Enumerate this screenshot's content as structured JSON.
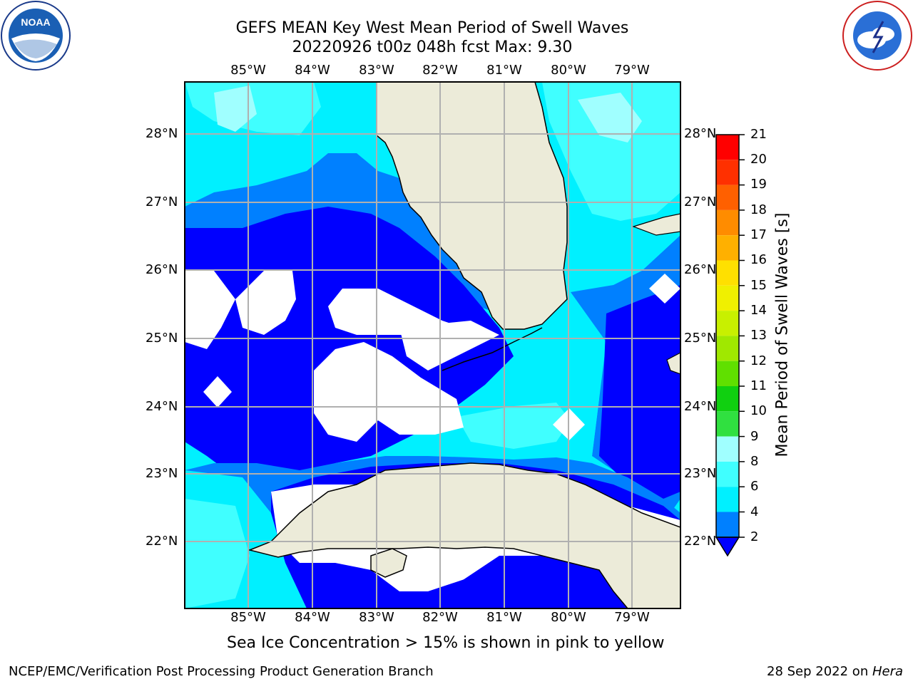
{
  "header": {
    "title_line1": "GEFS MEAN Key West Mean Period of Swell Waves",
    "title_line2": "20220926 t00z 048h fcst   Max: 9.30"
  },
  "logos": {
    "left": "NOAA",
    "left_ring_text": "NATIONAL OCEANIC AND ATMOSPHERIC ADMINISTRATION · U.S. DEPARTMENT OF COMMERCE",
    "right_ring_text": "NATIONAL WEATHER SERVICE"
  },
  "map": {
    "lon_labels": [
      "85°W",
      "84°W",
      "83°W",
      "82°W",
      "81°W",
      "80°W",
      "79°W"
    ],
    "lat_labels": [
      "28°N",
      "27°N",
      "26°N",
      "25°N",
      "24°N",
      "23°N",
      "22°N"
    ],
    "colors": {
      "land": "#ecebd9",
      "ocean_no_data": "#ffffff",
      "grid": "#b0b0b0"
    }
  },
  "colorbar": {
    "label": "Mean Period of Swell Waves [s]",
    "ticks": [
      "21",
      "20",
      "19",
      "18",
      "17",
      "16",
      "15",
      "14",
      "13",
      "12",
      "11",
      "10",
      "9",
      "8",
      "6",
      "4",
      "2"
    ],
    "colors": [
      "#ff0000",
      "#ff3000",
      "#ff6000",
      "#ff8c00",
      "#ffb000",
      "#ffe000",
      "#f0f000",
      "#c8f000",
      "#a0e800",
      "#60e000",
      "#10d010",
      "#30e040",
      "#60f080",
      "#a0ffff",
      "#40ffff",
      "#00f0ff",
      "#0080ff"
    ]
  },
  "footnote": "Sea Ice Concentration > 15% is shown in pink to yellow",
  "footer": {
    "left": "NCEP/EMC/Verification Post Processing Product Generation Branch",
    "right_prefix": "28 Sep 2022 on ",
    "right_host": "Hera"
  }
}
